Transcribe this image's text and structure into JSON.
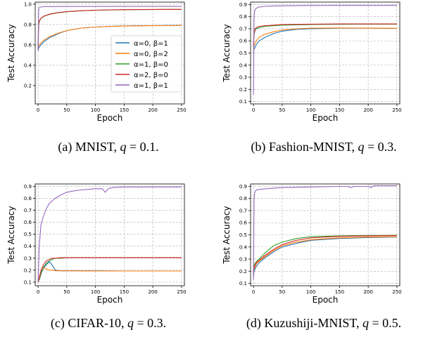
{
  "chart_data": [
    {
      "type": "line",
      "caption": "(a) MNIST, q = 0.1.",
      "xlabel": "Epoch",
      "ylabel": "Test Accuracy",
      "xlim": [
        -5,
        255
      ],
      "ylim": [
        0.02,
        1.02
      ],
      "xticks": [
        0,
        50,
        100,
        150,
        200,
        250
      ],
      "yticks": [
        0.2,
        0.4,
        0.6,
        0.8,
        1.0
      ],
      "ytick_labels": [
        "0.2",
        "0.4",
        "0.6",
        "0.8",
        "1.0"
      ],
      "grid": true,
      "legend_position": "center-right",
      "series": [
        {
          "name": "α=0, β=1",
          "color": "#1f77b4",
          "x": [
            0,
            1,
            5,
            10,
            20,
            35,
            50,
            75,
            100,
            125,
            150,
            175,
            200,
            225,
            250
          ],
          "y": [
            0.54,
            0.57,
            0.6,
            0.63,
            0.67,
            0.71,
            0.74,
            0.765,
            0.775,
            0.782,
            0.786,
            0.788,
            0.789,
            0.79,
            0.79
          ]
        },
        {
          "name": "α=0, β=2",
          "color": "#ff7f0e",
          "x": [
            0,
            1,
            5,
            10,
            20,
            35,
            50,
            75,
            100,
            125,
            150,
            175,
            200,
            225,
            250
          ],
          "y": [
            0.57,
            0.59,
            0.62,
            0.645,
            0.68,
            0.715,
            0.74,
            0.765,
            0.775,
            0.781,
            0.785,
            0.787,
            0.788,
            0.789,
            0.79
          ]
        },
        {
          "name": "α=1, β=0",
          "color": "#2ca02c",
          "x": [
            0,
            1,
            3,
            5,
            10,
            20,
            35,
            50,
            75,
            100,
            125,
            150,
            175,
            200,
            225,
            250
          ],
          "y": [
            0.55,
            0.8,
            0.84,
            0.86,
            0.88,
            0.9,
            0.915,
            0.925,
            0.935,
            0.94,
            0.943,
            0.945,
            0.946,
            0.947,
            0.948,
            0.948
          ]
        },
        {
          "name": "α=2, β=0",
          "color": "#d62728",
          "x": [
            0,
            1,
            3,
            5,
            10,
            20,
            35,
            50,
            75,
            100,
            125,
            150,
            175,
            200,
            225,
            250
          ],
          "y": [
            0.56,
            0.81,
            0.845,
            0.862,
            0.882,
            0.902,
            0.917,
            0.927,
            0.936,
            0.941,
            0.944,
            0.946,
            0.947,
            0.948,
            0.949,
            0.949
          ]
        },
        {
          "name": "α=1, β=1",
          "color": "#9467bd",
          "x": [
            0,
            1,
            2,
            3,
            5,
            10,
            20,
            50,
            100,
            150,
            200,
            250
          ],
          "y": [
            0.55,
            0.95,
            0.965,
            0.97,
            0.972,
            0.975,
            0.976,
            0.977,
            0.977,
            0.978,
            0.978,
            0.978
          ]
        }
      ]
    },
    {
      "type": "line",
      "caption": "(b) Fashion-MNIST, q = 0.3.",
      "xlabel": "Epoch",
      "ylabel": "Test Accuracy",
      "xlim": [
        -5,
        255
      ],
      "ylim": [
        0.08,
        0.92
      ],
      "xticks": [
        0,
        50,
        100,
        150,
        200,
        250
      ],
      "yticks": [
        0.1,
        0.2,
        0.3,
        0.4,
        0.5,
        0.6,
        0.7,
        0.8,
        0.9
      ],
      "ytick_labels": [
        "0.1",
        "0.2",
        "0.3",
        "0.4",
        "0.5",
        "0.6",
        "0.7",
        "0.8",
        "0.9"
      ],
      "grid": true,
      "series": [
        {
          "name": "α=0, β=1",
          "color": "#1f77b4",
          "x": [
            0,
            1,
            5,
            10,
            20,
            35,
            50,
            75,
            100,
            150,
            200,
            250
          ],
          "y": [
            0.5,
            0.53,
            0.57,
            0.6,
            0.63,
            0.66,
            0.68,
            0.695,
            0.7,
            0.705,
            0.705,
            0.703
          ]
        },
        {
          "name": "α=0, β=2",
          "color": "#ff7f0e",
          "x": [
            0,
            1,
            5,
            10,
            20,
            35,
            50,
            75,
            100,
            150,
            200,
            250
          ],
          "y": [
            0.52,
            0.56,
            0.6,
            0.63,
            0.655,
            0.675,
            0.69,
            0.7,
            0.705,
            0.707,
            0.706,
            0.704
          ]
        },
        {
          "name": "α=1, β=0",
          "color": "#2ca02c",
          "x": [
            0,
            1,
            3,
            5,
            10,
            20,
            50,
            100,
            150,
            200,
            250
          ],
          "y": [
            0.55,
            0.65,
            0.69,
            0.7,
            0.71,
            0.72,
            0.73,
            0.735,
            0.737,
            0.738,
            0.738
          ]
        },
        {
          "name": "α=2, β=0",
          "color": "#d62728",
          "x": [
            0,
            1,
            3,
            5,
            10,
            20,
            50,
            100,
            150,
            200,
            250
          ],
          "y": [
            0.56,
            0.66,
            0.7,
            0.71,
            0.72,
            0.725,
            0.735,
            0.738,
            0.74,
            0.74,
            0.74
          ]
        },
        {
          "name": "α=1, β=1",
          "color": "#9467bd",
          "x": [
            0,
            1,
            2,
            3,
            5,
            10,
            20,
            50,
            100,
            150,
            200,
            250
          ],
          "y": [
            0.16,
            0.8,
            0.84,
            0.86,
            0.87,
            0.88,
            0.885,
            0.89,
            0.892,
            0.893,
            0.893,
            0.893
          ]
        }
      ]
    },
    {
      "type": "line",
      "caption": "(c) CIFAR-10, q = 0.3.",
      "xlabel": "Epoch",
      "ylabel": "Test Accuracy",
      "xlim": [
        -5,
        255
      ],
      "ylim": [
        0.07,
        0.92
      ],
      "xticks": [
        0,
        50,
        100,
        150,
        200,
        250
      ],
      "yticks": [
        0.1,
        0.2,
        0.3,
        0.4,
        0.5,
        0.6,
        0.7,
        0.8,
        0.9
      ],
      "ytick_labels": [
        "0.1",
        "0.2",
        "0.3",
        "0.4",
        "0.5",
        "0.6",
        "0.7",
        "0.8",
        "0.9"
      ],
      "grid": true,
      "series": [
        {
          "name": "α=0, β=1",
          "color": "#1f77b4",
          "x": [
            0,
            3,
            6,
            10,
            15,
            20,
            25,
            30,
            40,
            50,
            100,
            150,
            200,
            250
          ],
          "y": [
            0.1,
            0.13,
            0.18,
            0.22,
            0.25,
            0.27,
            0.24,
            0.2,
            0.195,
            0.195,
            0.195,
            0.193,
            0.193,
            0.193
          ]
        },
        {
          "name": "α=0, β=2",
          "color": "#ff7f0e",
          "x": [
            0,
            3,
            6,
            10,
            15,
            20,
            25,
            30,
            40,
            50,
            100,
            150,
            200,
            250
          ],
          "y": [
            0.1,
            0.14,
            0.19,
            0.22,
            0.21,
            0.2,
            0.2,
            0.195,
            0.195,
            0.195,
            0.193,
            0.193,
            0.193,
            0.193
          ]
        },
        {
          "name": "α=1, β=0",
          "color": "#2ca02c",
          "x": [
            0,
            3,
            6,
            10,
            15,
            20,
            25,
            30,
            40,
            50,
            100,
            150,
            200,
            250
          ],
          "y": [
            0.1,
            0.15,
            0.19,
            0.23,
            0.26,
            0.28,
            0.29,
            0.3,
            0.3,
            0.305,
            0.305,
            0.305,
            0.305,
            0.305
          ]
        },
        {
          "name": "α=2, β=0",
          "color": "#d62728",
          "x": [
            0,
            3,
            6,
            10,
            15,
            20,
            25,
            30,
            40,
            50,
            100,
            150,
            200,
            250
          ],
          "y": [
            0.1,
            0.16,
            0.21,
            0.25,
            0.28,
            0.29,
            0.3,
            0.3,
            0.305,
            0.305,
            0.305,
            0.305,
            0.305,
            0.305
          ]
        },
        {
          "name": "α=1, β=1",
          "color": "#9467bd",
          "x": [
            0,
            2,
            5,
            10,
            15,
            20,
            30,
            40,
            50,
            60,
            75,
            100,
            112,
            117,
            122,
            130,
            150,
            200,
            250
          ],
          "y": [
            0.1,
            0.4,
            0.58,
            0.66,
            0.72,
            0.76,
            0.8,
            0.83,
            0.85,
            0.86,
            0.87,
            0.88,
            0.88,
            0.85,
            0.88,
            0.89,
            0.895,
            0.895,
            0.895
          ]
        }
      ]
    },
    {
      "type": "line",
      "caption": "(d) Kuzushiji-MNIST, q = 0.5.",
      "xlabel": "Epoch",
      "ylabel": "Test Accuracy",
      "xlim": [
        -5,
        255
      ],
      "ylim": [
        0.08,
        0.92
      ],
      "xticks": [
        0,
        50,
        100,
        150,
        200,
        250
      ],
      "yticks": [
        0.1,
        0.2,
        0.3,
        0.4,
        0.5,
        0.6,
        0.7,
        0.8,
        0.9
      ],
      "ytick_labels": [
        "0.1",
        "0.2",
        "0.3",
        "0.4",
        "0.5",
        "0.6",
        "0.7",
        "0.8",
        "0.9"
      ],
      "grid": true,
      "series": [
        {
          "name": "α=0, β=1",
          "color": "#1f77b4",
          "x": [
            0,
            1,
            5,
            10,
            20,
            35,
            50,
            75,
            100,
            150,
            200,
            250
          ],
          "y": [
            0.15,
            0.2,
            0.24,
            0.27,
            0.31,
            0.36,
            0.4,
            0.43,
            0.455,
            0.47,
            0.478,
            0.482
          ]
        },
        {
          "name": "α=0, β=2",
          "color": "#ff7f0e",
          "x": [
            0,
            1,
            5,
            10,
            20,
            35,
            50,
            75,
            100,
            150,
            200,
            250
          ],
          "y": [
            0.17,
            0.22,
            0.26,
            0.285,
            0.32,
            0.37,
            0.41,
            0.44,
            0.46,
            0.475,
            0.482,
            0.485
          ]
        },
        {
          "name": "α=1, β=0",
          "color": "#2ca02c",
          "x": [
            0,
            1,
            5,
            10,
            20,
            35,
            50,
            75,
            100,
            150,
            200,
            250
          ],
          "y": [
            0.18,
            0.25,
            0.28,
            0.3,
            0.35,
            0.41,
            0.44,
            0.47,
            0.485,
            0.492,
            0.495,
            0.496
          ]
        },
        {
          "name": "α=2, β=0",
          "color": "#d62728",
          "x": [
            0,
            1,
            5,
            10,
            20,
            35,
            50,
            75,
            100,
            150,
            200,
            250
          ],
          "y": [
            0.17,
            0.23,
            0.27,
            0.29,
            0.33,
            0.38,
            0.42,
            0.455,
            0.475,
            0.487,
            0.492,
            0.494
          ]
        },
        {
          "name": "α=1, β=1",
          "color": "#9467bd",
          "x": [
            0,
            1,
            2,
            3,
            5,
            10,
            20,
            50,
            100,
            150,
            165,
            170,
            175,
            200,
            205,
            210,
            250
          ],
          "y": [
            0.13,
            0.8,
            0.84,
            0.86,
            0.87,
            0.875,
            0.88,
            0.89,
            0.895,
            0.9,
            0.9,
            0.89,
            0.9,
            0.9,
            0.89,
            0.905,
            0.905
          ]
        }
      ]
    }
  ]
}
